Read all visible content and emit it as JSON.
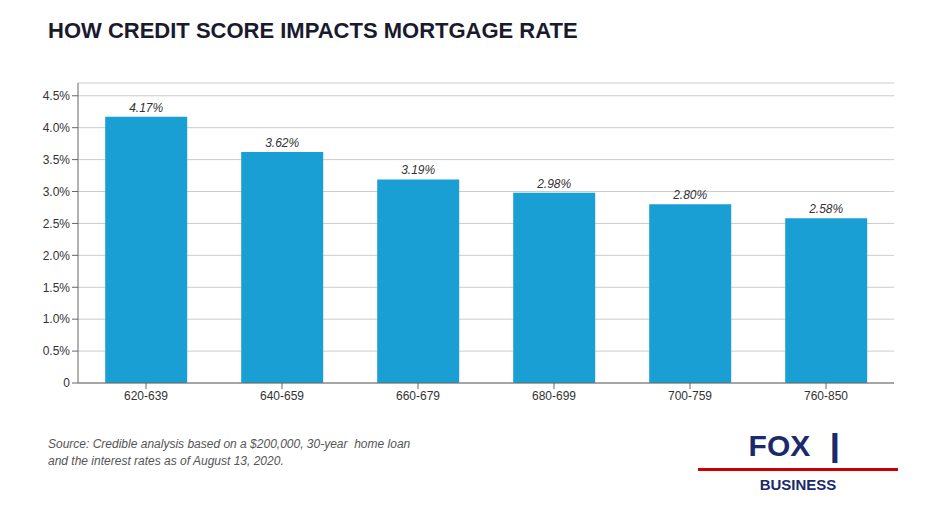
{
  "chart_data": {
    "type": "bar",
    "title": "HOW CREDIT SCORE IMPACTS MORTGAGE RATE",
    "categories": [
      "620-639",
      "640-659",
      "660-679",
      "680-699",
      "700-759",
      "760-850"
    ],
    "values": [
      4.17,
      3.62,
      3.19,
      2.98,
      2.8,
      2.58
    ],
    "value_labels": [
      "4.17%",
      "3.62%",
      "3.19%",
      "2.98%",
      "2.80%",
      "2.58%"
    ],
    "data_labels": true,
    "color": "#1a9fd4",
    "ylim": [
      0,
      4.7
    ],
    "yticks": [
      0,
      {
        "value": 0.5,
        "label": "0.5%"
      },
      {
        "value": 1.0,
        "label": "1.0%"
      },
      {
        "value": 1.5,
        "label": "1.5%"
      },
      {
        "value": 2.0,
        "label": "2.0%"
      },
      {
        "value": 2.5,
        "label": "2.5%"
      },
      {
        "value": 3.0,
        "label": "3.0%"
      },
      {
        "value": 3.5,
        "label": "3.5%"
      },
      {
        "value": 4.0,
        "label": "4.0%"
      },
      {
        "value": 4.5,
        "label": "4.5%"
      }
    ],
    "grid": true,
    "annotations": [
      "Source: Credible analysis based on a $200,000, 30-year  home loan\nand the interest rates as of August 13, 2020.",
      "FOX",
      "❙",
      "BUSINESS"
    ]
  }
}
